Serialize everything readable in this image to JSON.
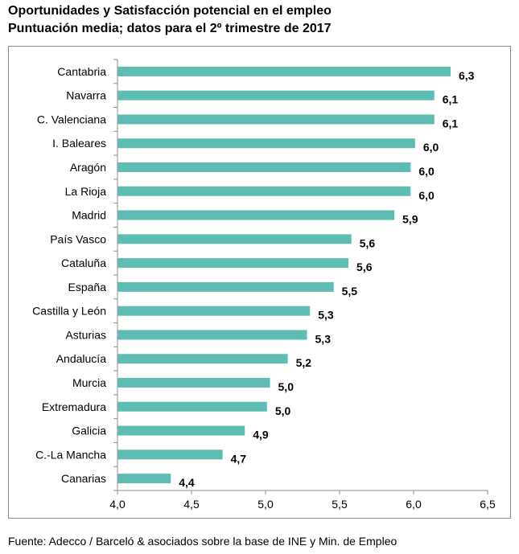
{
  "title": "Oportunidades y Satisfacción potencial en el empleo",
  "subtitle": "Puntuación media; datos para el 2º trimestre de 2017",
  "source": "Fuente: Adecco / Barceló & asociados sobre la base de INE y Min. de Empleo",
  "colors": {
    "bar": "#5fbcb2",
    "axis": "#8c8c8c",
    "text": "#000000"
  },
  "chart_data": {
    "type": "bar",
    "orientation": "horizontal",
    "categories": [
      "Cantabria",
      "Navarra",
      "C. Valenciana",
      "I. Baleares",
      "Aragón",
      "La Rioja",
      "Madrid",
      "País Vasco",
      "Cataluña",
      "España",
      "Castilla y León",
      "Asturias",
      "Andalucía",
      "Murcia",
      "Extremadura",
      "Galicia",
      "C.-La Mancha",
      "Canarias"
    ],
    "values": [
      6.25,
      6.14,
      6.14,
      6.01,
      5.98,
      5.98,
      5.87,
      5.58,
      5.56,
      5.46,
      5.3,
      5.28,
      5.15,
      5.03,
      5.01,
      4.86,
      4.71,
      4.36
    ],
    "data_labels": [
      "6,3",
      "6,1",
      "6,1",
      "6,0",
      "6,0",
      "6,0",
      "5,9",
      "5,6",
      "5,6",
      "5,5",
      "5,3",
      "5,3",
      "5,2",
      "5,0",
      "5,0",
      "4,9",
      "4,7",
      "4,4"
    ],
    "xlim": [
      4.0,
      6.5
    ],
    "xticks": [
      4.0,
      4.5,
      5.0,
      5.5,
      6.0,
      6.5
    ],
    "xtick_labels": [
      "4,0",
      "4,5",
      "5,0",
      "5,5",
      "6,0",
      "6,5"
    ],
    "xlabel": "",
    "ylabel": "",
    "grid": false,
    "legend": "none"
  }
}
